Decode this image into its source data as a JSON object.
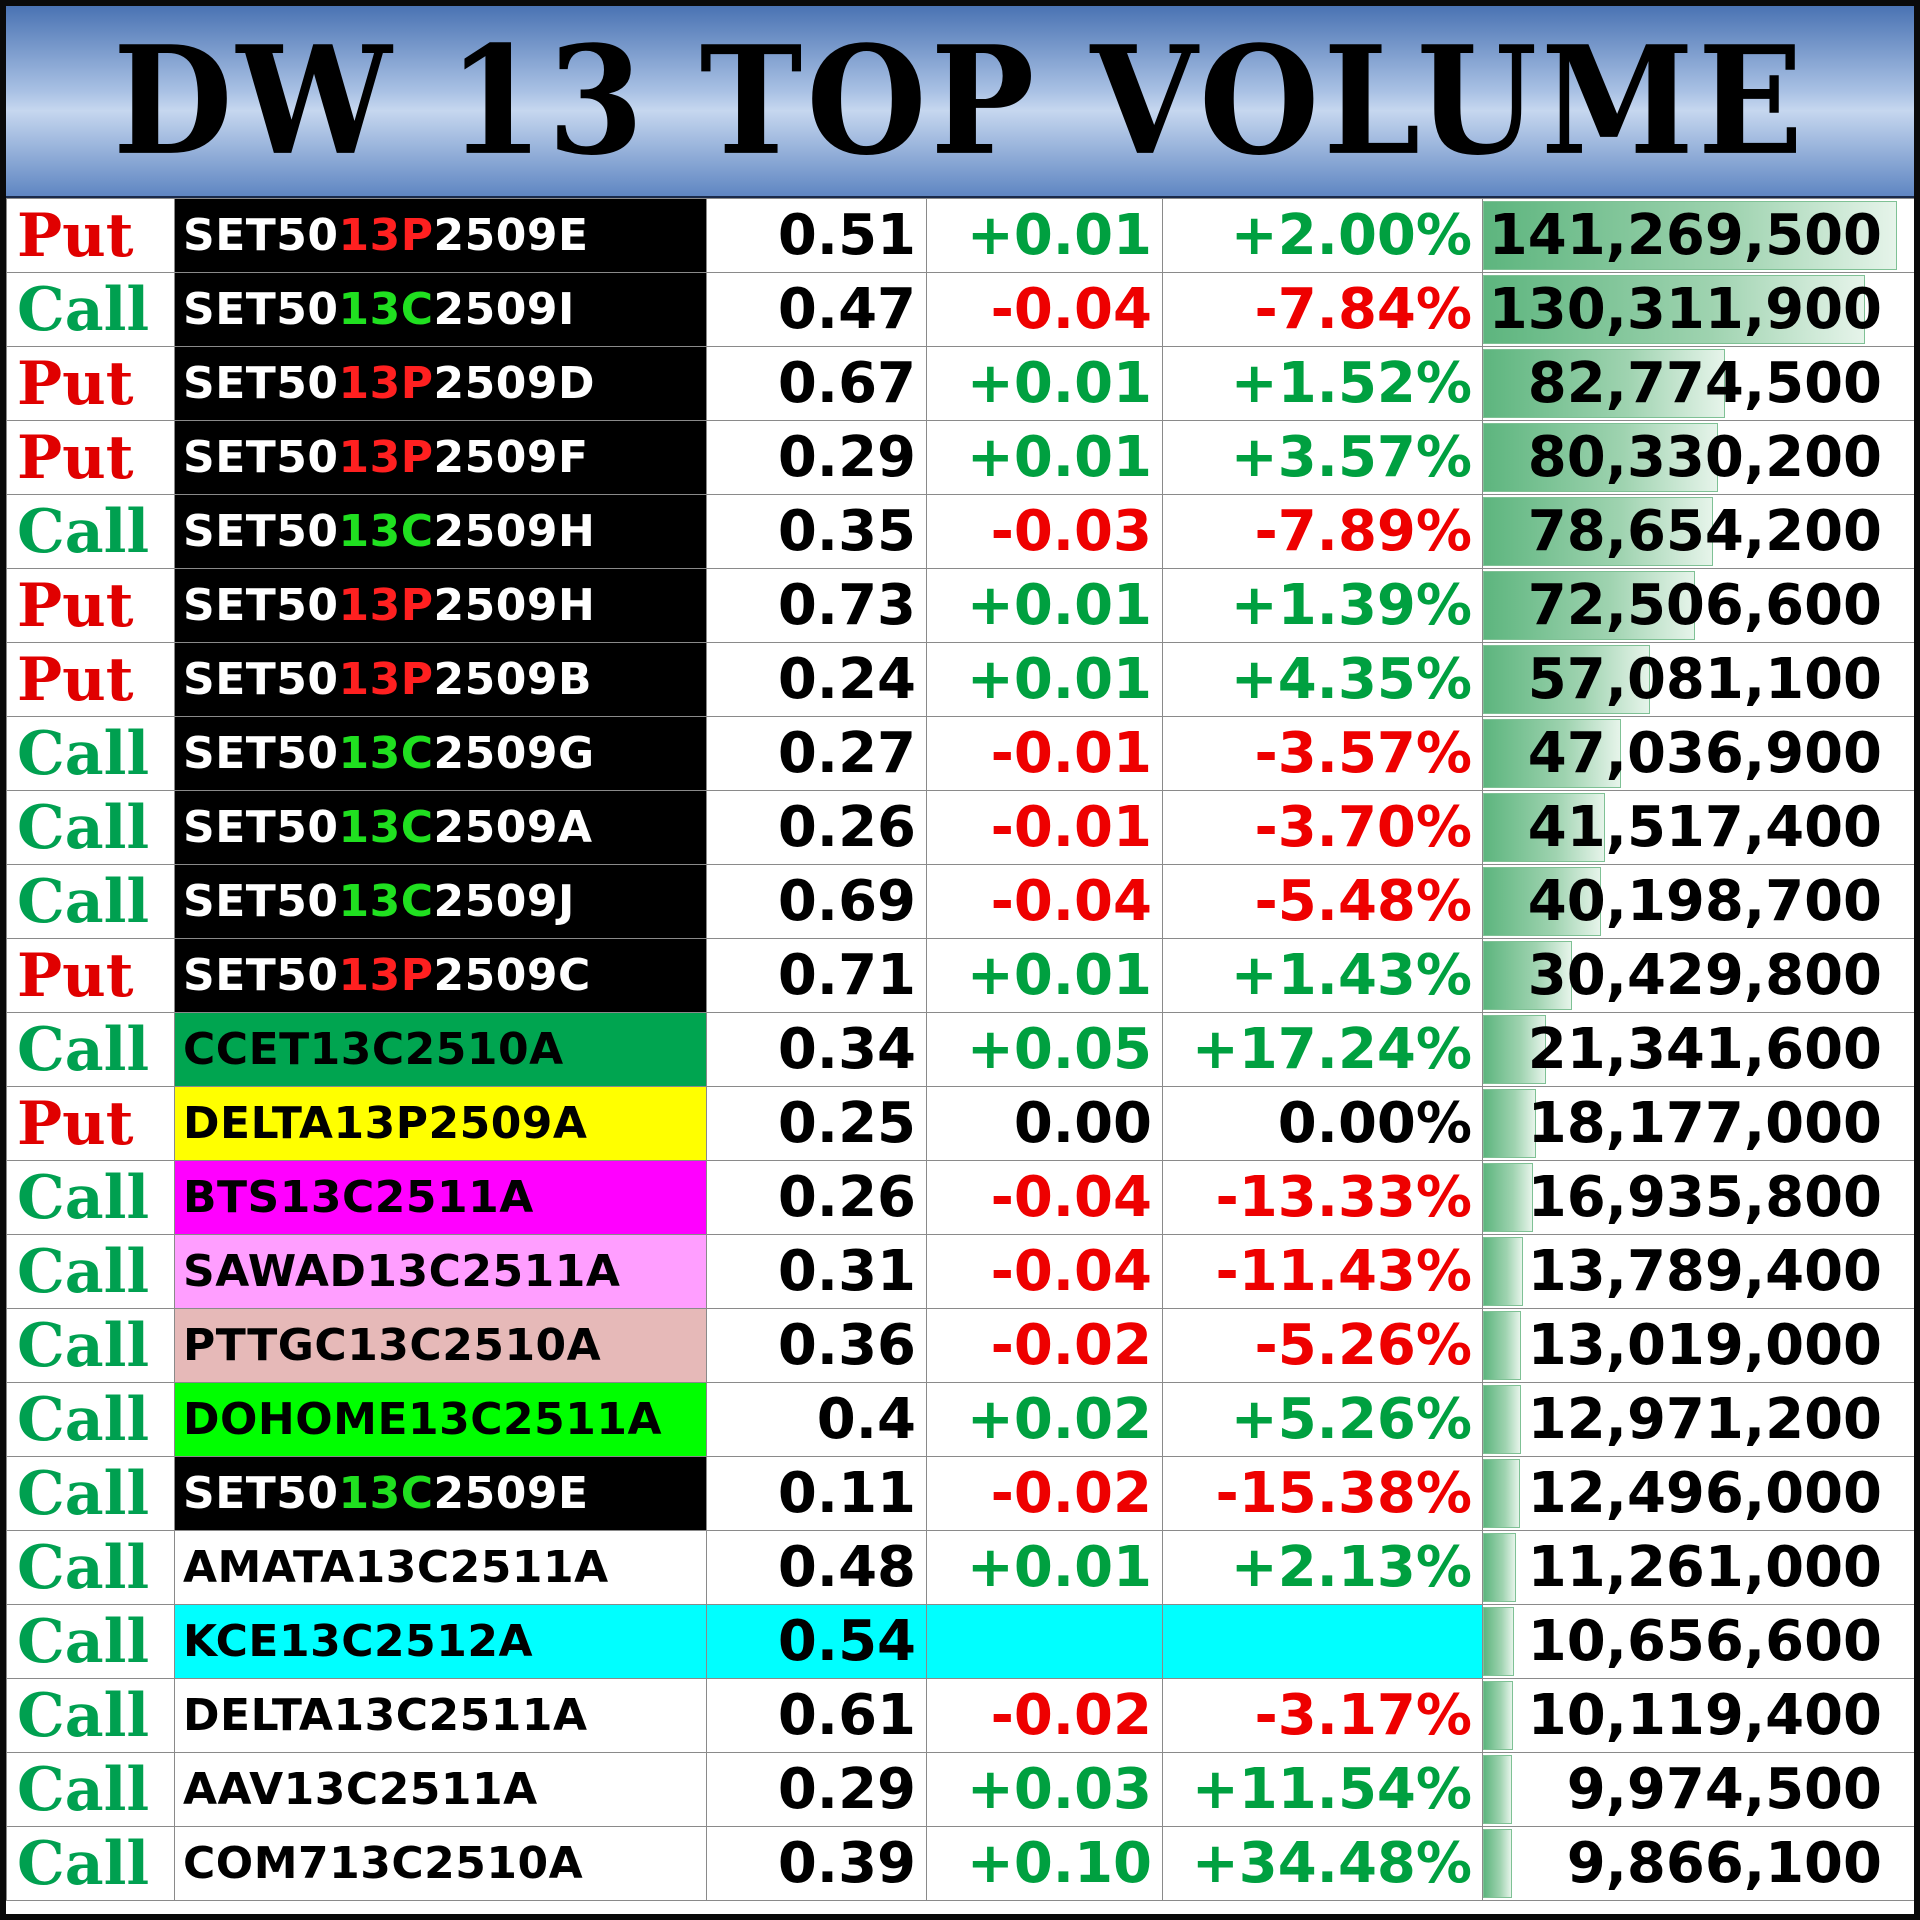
{
  "title": "DW 13 TOP VOLUME",
  "colors": {
    "put": "#e00000",
    "call": "#00a050",
    "positive": "#00a040",
    "negative": "#ee0000",
    "set50_prefix": "#ffffff",
    "set50_put_mid": "#ff2020",
    "set50_call_mid": "#20e020",
    "bar": "#5db57e"
  },
  "max_volume": 141269500,
  "rows": [
    {
      "type": "Put",
      "sym_a": "SET50",
      "sym_b": "13P",
      "sym_c": "2509E",
      "price": "0.51",
      "change": "+0.01",
      "pct": "+2.00%",
      "volume": "141,269,500",
      "vol": 141269500,
      "dir": "up",
      "bg": "#000000",
      "fg": "#ffffff",
      "mid": "#ff2020"
    },
    {
      "type": "Call",
      "sym_a": "SET50",
      "sym_b": "13C",
      "sym_c": "2509I",
      "price": "0.47",
      "change": "-0.04",
      "pct": "-7.84%",
      "volume": "130,311,900",
      "vol": 130311900,
      "dir": "down",
      "bg": "#000000",
      "fg": "#ffffff",
      "mid": "#20e020"
    },
    {
      "type": "Put",
      "sym_a": "SET50",
      "sym_b": "13P",
      "sym_c": "2509D",
      "price": "0.67",
      "change": "+0.01",
      "pct": "+1.52%",
      "volume": "82,774,500",
      "vol": 82774500,
      "dir": "up",
      "bg": "#000000",
      "fg": "#ffffff",
      "mid": "#ff2020"
    },
    {
      "type": "Put",
      "sym_a": "SET50",
      "sym_b": "13P",
      "sym_c": "2509F",
      "price": "0.29",
      "change": "+0.01",
      "pct": "+3.57%",
      "volume": "80,330,200",
      "vol": 80330200,
      "dir": "up",
      "bg": "#000000",
      "fg": "#ffffff",
      "mid": "#ff2020"
    },
    {
      "type": "Call",
      "sym_a": "SET50",
      "sym_b": "13C",
      "sym_c": "2509H",
      "price": "0.35",
      "change": "-0.03",
      "pct": "-7.89%",
      "volume": "78,654,200",
      "vol": 78654200,
      "dir": "down",
      "bg": "#000000",
      "fg": "#ffffff",
      "mid": "#20e020"
    },
    {
      "type": "Put",
      "sym_a": "SET50",
      "sym_b": "13P",
      "sym_c": "2509H",
      "price": "0.73",
      "change": "+0.01",
      "pct": "+1.39%",
      "volume": "72,506,600",
      "vol": 72506600,
      "dir": "up",
      "bg": "#000000",
      "fg": "#ffffff",
      "mid": "#ff2020"
    },
    {
      "type": "Put",
      "sym_a": "SET50",
      "sym_b": "13P",
      "sym_c": "2509B",
      "price": "0.24",
      "change": "+0.01",
      "pct": "+4.35%",
      "volume": "57,081,100",
      "vol": 57081100,
      "dir": "up",
      "bg": "#000000",
      "fg": "#ffffff",
      "mid": "#ff2020"
    },
    {
      "type": "Call",
      "sym_a": "SET50",
      "sym_b": "13C",
      "sym_c": "2509G",
      "price": "0.27",
      "change": "-0.01",
      "pct": "-3.57%",
      "volume": "47,036,900",
      "vol": 47036900,
      "dir": "down",
      "bg": "#000000",
      "fg": "#ffffff",
      "mid": "#20e020"
    },
    {
      "type": "Call",
      "sym_a": "SET50",
      "sym_b": "13C",
      "sym_c": "2509A",
      "price": "0.26",
      "change": "-0.01",
      "pct": "-3.70%",
      "volume": "41,517,400",
      "vol": 41517400,
      "dir": "down",
      "bg": "#000000",
      "fg": "#ffffff",
      "mid": "#20e020"
    },
    {
      "type": "Call",
      "sym_a": "SET50",
      "sym_b": "13C",
      "sym_c": "2509J",
      "price": "0.69",
      "change": "-0.04",
      "pct": "-5.48%",
      "volume": "40,198,700",
      "vol": 40198700,
      "dir": "down",
      "bg": "#000000",
      "fg": "#ffffff",
      "mid": "#20e020"
    },
    {
      "type": "Put",
      "sym_a": "SET50",
      "sym_b": "13P",
      "sym_c": "2509C",
      "price": "0.71",
      "change": "+0.01",
      "pct": "+1.43%",
      "volume": "30,429,800",
      "vol": 30429800,
      "dir": "up",
      "bg": "#000000",
      "fg": "#ffffff",
      "mid": "#ff2020"
    },
    {
      "type": "Call",
      "sym_a": "CCET13C2510A",
      "sym_b": "",
      "sym_c": "",
      "price": "0.34",
      "change": "+0.05",
      "pct": "+17.24%",
      "volume": "21,341,600",
      "vol": 21341600,
      "dir": "up",
      "bg": "#00a550",
      "fg": "#000000",
      "mid": "#000000"
    },
    {
      "type": "Put",
      "sym_a": "DELTA13P2509A",
      "sym_b": "",
      "sym_c": "",
      "price": "0.25",
      "change": "0.00",
      "pct": "0.00%",
      "volume": "18,177,000",
      "vol": 18177000,
      "dir": "flat",
      "bg": "#ffff00",
      "fg": "#000000",
      "mid": "#000000"
    },
    {
      "type": "Call",
      "sym_a": "BTS13C2511A",
      "sym_b": "",
      "sym_c": "",
      "price": "0.26",
      "change": "-0.04",
      "pct": "-13.33%",
      "volume": "16,935,800",
      "vol": 16935800,
      "dir": "down",
      "bg": "#ff00ff",
      "fg": "#000000",
      "mid": "#000000"
    },
    {
      "type": "Call",
      "sym_a": "SAWAD13C2511A",
      "sym_b": "",
      "sym_c": "",
      "price": "0.31",
      "change": "-0.04",
      "pct": "-11.43%",
      "volume": "13,789,400",
      "vol": 13789400,
      "dir": "down",
      "bg": "#ff9eff",
      "fg": "#000000",
      "mid": "#000000"
    },
    {
      "type": "Call",
      "sym_a": "PTTGC13C2510A",
      "sym_b": "",
      "sym_c": "",
      "price": "0.36",
      "change": "-0.02",
      "pct": "-5.26%",
      "volume": "13,019,000",
      "vol": 13019000,
      "dir": "down",
      "bg": "#e6b9b8",
      "fg": "#000000",
      "mid": "#000000"
    },
    {
      "type": "Call",
      "sym_a": "DOHOME13C2511A",
      "sym_b": "",
      "sym_c": "",
      "price": "0.4",
      "change": "+0.02",
      "pct": "+5.26%",
      "volume": "12,971,200",
      "vol": 12971200,
      "dir": "up",
      "bg": "#00ff00",
      "fg": "#000000",
      "mid": "#000000"
    },
    {
      "type": "Call",
      "sym_a": "SET50",
      "sym_b": "13C",
      "sym_c": "2509E",
      "price": "0.11",
      "change": "-0.02",
      "pct": "-15.38%",
      "volume": "12,496,000",
      "vol": 12496000,
      "dir": "down",
      "bg": "#000000",
      "fg": "#ffffff",
      "mid": "#20e020"
    },
    {
      "type": "Call",
      "sym_a": "AMATA13C2511A",
      "sym_b": "",
      "sym_c": "",
      "price": "0.48",
      "change": "+0.01",
      "pct": "+2.13%",
      "volume": "11,261,000",
      "vol": 11261000,
      "dir": "up",
      "bg": "#ffffff",
      "fg": "#000000",
      "mid": "#000000"
    },
    {
      "type": "Call",
      "sym_a": "KCE13C2512A",
      "sym_b": "",
      "sym_c": "",
      "price": "0.54",
      "change": "",
      "pct": "",
      "volume": "10,656,600",
      "vol": 10656600,
      "dir": "flat",
      "bg": "#00ffff",
      "fg": "#000000",
      "mid": "#000000",
      "highlight": "#00ffff"
    },
    {
      "type": "Call",
      "sym_a": "DELTA13C2511A",
      "sym_b": "",
      "sym_c": "",
      "price": "0.61",
      "change": "-0.02",
      "pct": "-3.17%",
      "volume": "10,119,400",
      "vol": 10119400,
      "dir": "down",
      "bg": "#ffffff",
      "fg": "#000000",
      "mid": "#000000"
    },
    {
      "type": "Call",
      "sym_a": "AAV13C2511A",
      "sym_b": "",
      "sym_c": "",
      "price": "0.29",
      "change": "+0.03",
      "pct": "+11.54%",
      "volume": "9,974,500",
      "vol": 9974500,
      "dir": "up",
      "bg": "#ffffff",
      "fg": "#000000",
      "mid": "#000000"
    },
    {
      "type": "Call",
      "sym_a": "COM713C2510A",
      "sym_b": "",
      "sym_c": "",
      "price": "0.39",
      "change": "+0.10",
      "pct": "+34.48%",
      "volume": "9,866,100",
      "vol": 9866100,
      "dir": "up",
      "bg": "#ffffff",
      "fg": "#000000",
      "mid": "#000000"
    }
  ]
}
